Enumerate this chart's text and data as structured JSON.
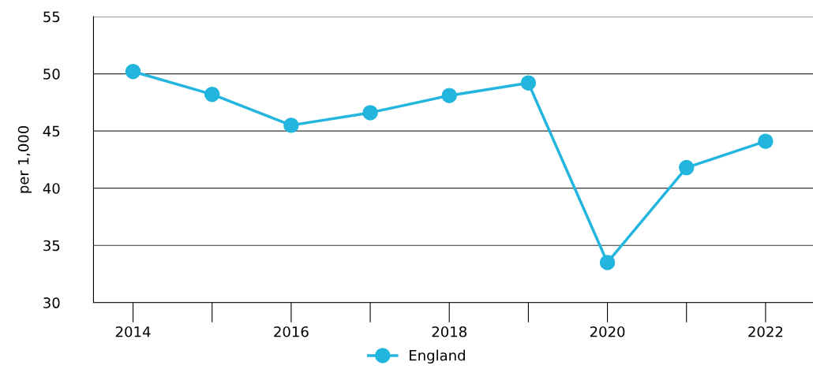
{
  "chart_data": {
    "type": "line",
    "ylabel": "per 1,000",
    "x": [
      2014,
      2015,
      2016,
      2017,
      2018,
      2019,
      2020,
      2021,
      2022
    ],
    "series": [
      {
        "name": "England",
        "color": "#22b5de",
        "values": [
          50.2,
          48.2,
          45.5,
          46.6,
          48.1,
          49.2,
          33.5,
          41.8,
          44.1
        ]
      }
    ],
    "xlim": [
      2013.5,
      2022.6
    ],
    "xticks": [
      2014,
      2016,
      2018,
      2020,
      2022
    ],
    "ylim": [
      30,
      55
    ],
    "yticks": [
      30,
      35,
      40,
      45,
      50,
      55
    ],
    "grid": "y",
    "legend": "bottom",
    "marker": "circle",
    "line_style": "solid"
  }
}
